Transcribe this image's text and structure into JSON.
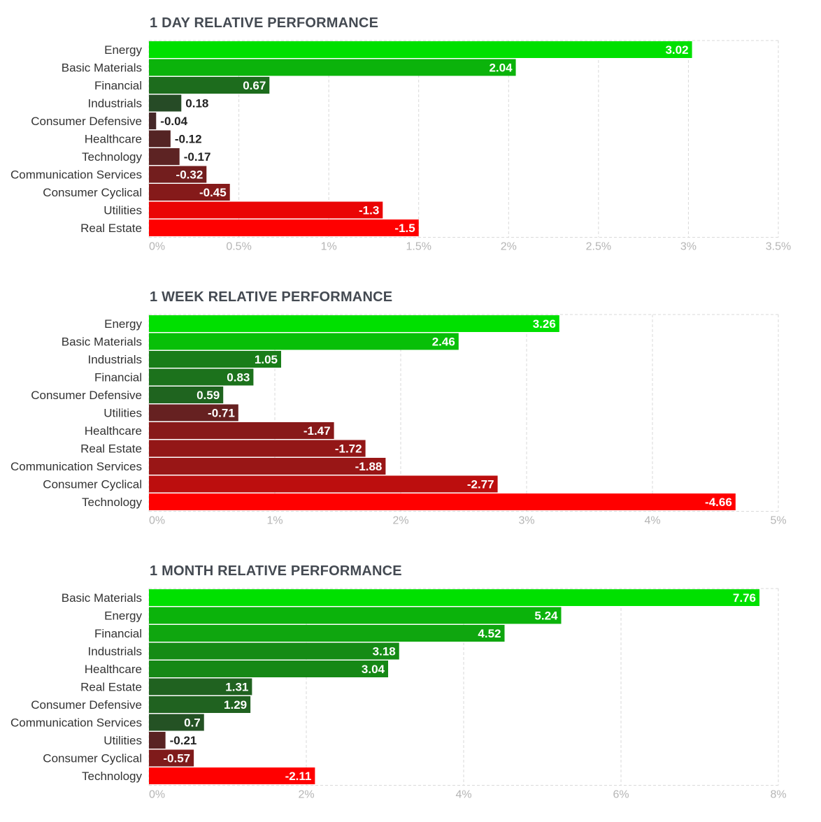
{
  "chart_data": [
    {
      "type": "bar",
      "orientation": "horizontal",
      "title": "1 DAY RELATIVE PERFORMANCE",
      "categories": [
        "Energy",
        "Basic Materials",
        "Financial",
        "Industrials",
        "Consumer Defensive",
        "Healthcare",
        "Technology",
        "Communication Services",
        "Consumer Cyclical",
        "Utilities",
        "Real Estate"
      ],
      "values": [
        3.02,
        2.04,
        0.67,
        0.18,
        -0.04,
        -0.12,
        -0.17,
        -0.32,
        -0.45,
        -1.3,
        -1.5
      ],
      "value_labels": [
        "3.02",
        "2.04",
        "0.67",
        "0.18",
        "-0.04",
        "-0.12",
        "-0.17",
        "-0.32",
        "-0.45",
        "-1.3",
        "-1.5"
      ],
      "xlim": [
        0,
        3.5
      ],
      "xticks": [
        0,
        0.5,
        1,
        1.5,
        2,
        2.5,
        3,
        3.5
      ],
      "xtick_labels": [
        "0%",
        "0.5%",
        "1%",
        "1.5%",
        "2%",
        "2.5%",
        "3%",
        "3.5%"
      ],
      "bar_length": "absolute value",
      "grid": true,
      "colors": {
        "positive_max": "#00e000",
        "positive_min": "#2a3a2a",
        "negative_min": "#3a2a2a",
        "negative_max": "#ff0000"
      }
    },
    {
      "type": "bar",
      "orientation": "horizontal",
      "title": "1 WEEK RELATIVE PERFORMANCE",
      "categories": [
        "Energy",
        "Basic Materials",
        "Industrials",
        "Financial",
        "Consumer Defensive",
        "Utilities",
        "Healthcare",
        "Real Estate",
        "Communication Services",
        "Consumer Cyclical",
        "Technology"
      ],
      "values": [
        3.26,
        2.46,
        1.05,
        0.83,
        0.59,
        -0.71,
        -1.47,
        -1.72,
        -1.88,
        -2.77,
        -4.66
      ],
      "value_labels": [
        "3.26",
        "2.46",
        "1.05",
        "0.83",
        "0.59",
        "-0.71",
        "-1.47",
        "-1.72",
        "-1.88",
        "-2.77",
        "-4.66"
      ],
      "xlim": [
        0,
        5
      ],
      "xticks": [
        0,
        1,
        2,
        3,
        4,
        5
      ],
      "xtick_labels": [
        "0%",
        "1%",
        "2%",
        "3%",
        "4%",
        "5%"
      ],
      "bar_length": "absolute value",
      "grid": true,
      "colors": {
        "positive_max": "#00e000",
        "positive_min": "#2a3a2a",
        "negative_min": "#3a2a2a",
        "negative_max": "#ff0000"
      }
    },
    {
      "type": "bar",
      "orientation": "horizontal",
      "title": "1 MONTH RELATIVE PERFORMANCE",
      "categories": [
        "Basic Materials",
        "Energy",
        "Financial",
        "Industrials",
        "Healthcare",
        "Real Estate",
        "Consumer Defensive",
        "Communication Services",
        "Utilities",
        "Consumer Cyclical",
        "Technology"
      ],
      "values": [
        7.76,
        5.24,
        4.52,
        3.18,
        3.04,
        1.31,
        1.29,
        0.7,
        -0.21,
        -0.57,
        -2.11
      ],
      "value_labels": [
        "7.76",
        "5.24",
        "4.52",
        "3.18",
        "3.04",
        "1.31",
        "1.29",
        "0.7",
        "-0.21",
        "-0.57",
        "-2.11"
      ],
      "xlim": [
        0,
        8
      ],
      "xticks": [
        0,
        2,
        4,
        6,
        8
      ],
      "xtick_labels": [
        "0%",
        "2%",
        "4%",
        "6%",
        "8%"
      ],
      "bar_length": "absolute value",
      "grid": true,
      "colors": {
        "positive_max": "#00e000",
        "positive_min": "#2a3a2a",
        "negative_min": "#3a2a2a",
        "negative_max": "#ff0000"
      }
    }
  ]
}
